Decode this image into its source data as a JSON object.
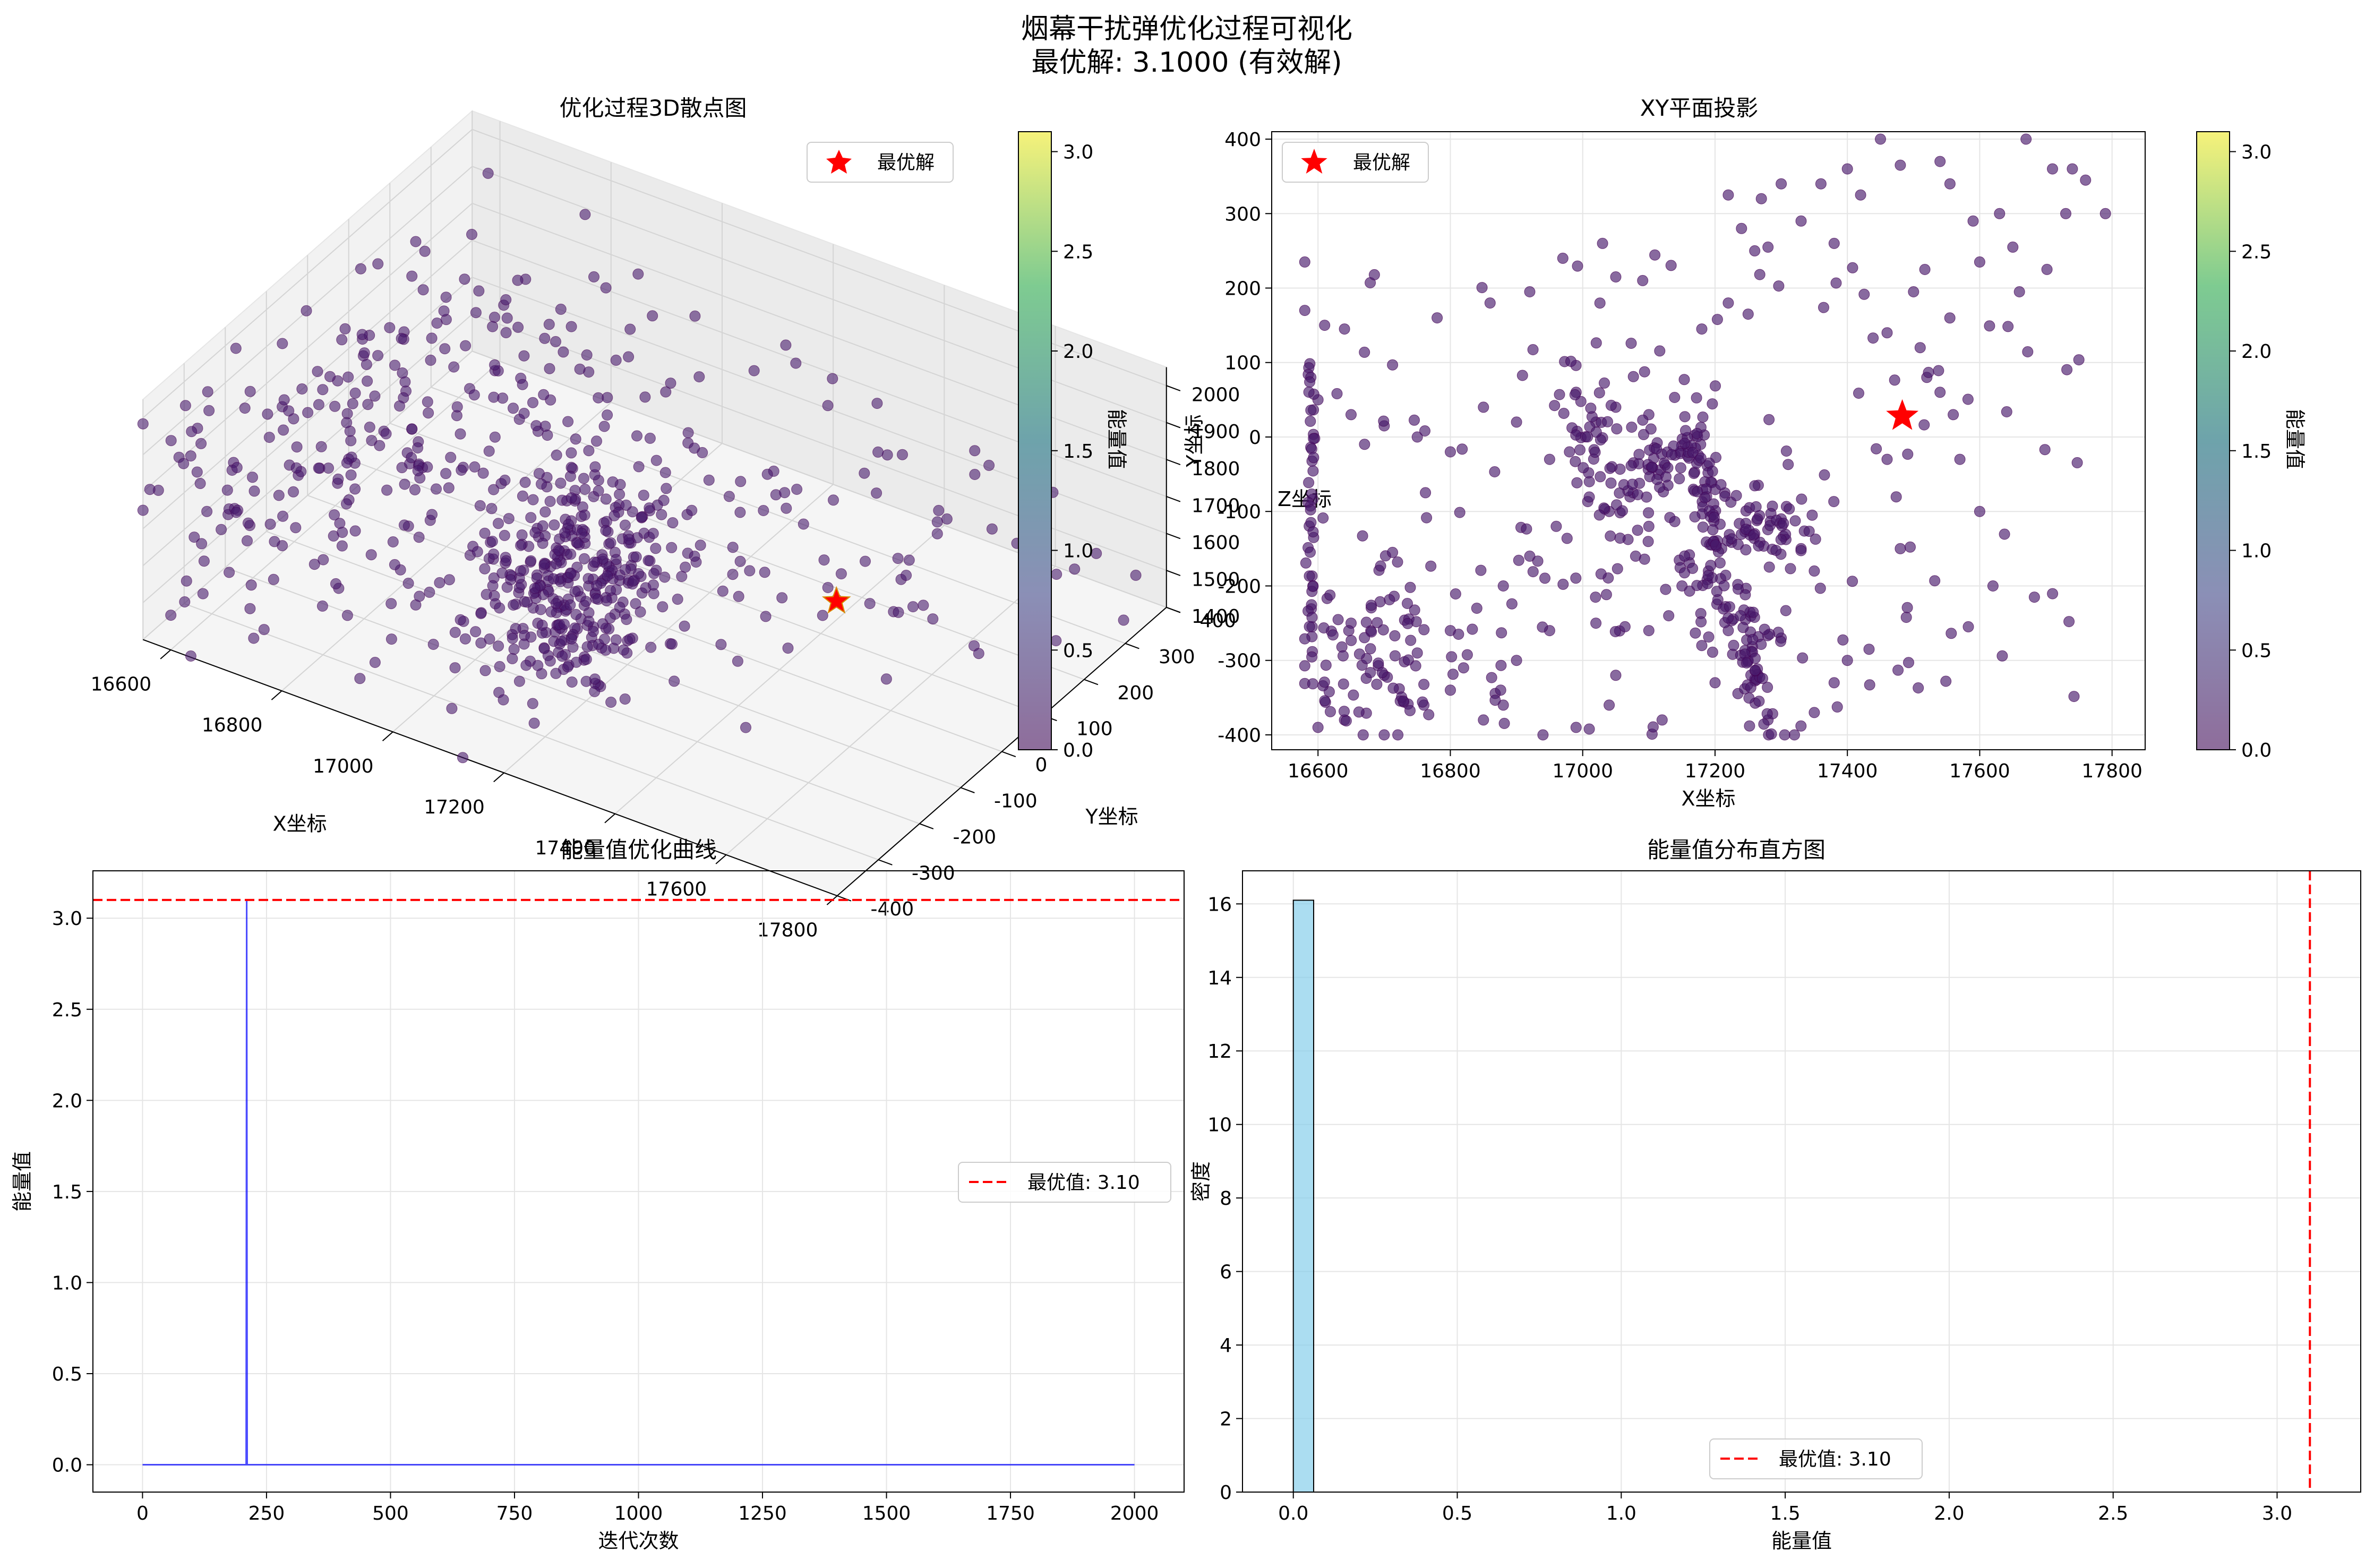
{
  "figure": {
    "suptitle_line1": "烟幕干扰弹优化过程可视化",
    "suptitle_line2": "最优解: 3.1000 (有效解)"
  },
  "colors": {
    "viridis_dark": "#440154",
    "viridis_low": "#481a6c",
    "best_marker": "#ff0000",
    "curve": "#0000ff",
    "hist_bar": "#87ceeb",
    "best_line": "#ff0000"
  },
  "chart_data": [
    {
      "type": "scatter",
      "projection": "3d",
      "title": "优化过程3D散点图",
      "xlabel": "X坐标",
      "ylabel": "Y坐标",
      "zlabel": "Z坐标",
      "x_ticks": [
        "16600",
        "16800",
        "17000",
        "17200",
        "17400",
        "17600",
        "17800"
      ],
      "y_ticks": [
        "-400",
        "-300",
        "-200",
        "-100",
        "0",
        "100",
        "200",
        "300",
        "400"
      ],
      "z_ticks": [
        "1400",
        "1500",
        "1600",
        "1700",
        "1800",
        "1900",
        "2000"
      ],
      "xlim": [
        16550,
        17800
      ],
      "ylim": [
        -400,
        400
      ],
      "zlim": [
        1400,
        2050
      ],
      "legend": "最优解",
      "legend_position": "upper-right",
      "best_point": {
        "x": 17480,
        "y": 30,
        "z": 1600
      },
      "colorbar": {
        "label": "能量值",
        "ticks": [
          "0.0",
          "0.5",
          "1.0",
          "1.5",
          "2.0",
          "2.5",
          "3.0"
        ],
        "range": [
          0,
          3.1
        ]
      }
    },
    {
      "type": "scatter",
      "title": "XY平面投影",
      "xlabel": "X坐标",
      "ylabel": "Y坐标",
      "x_ticks": [
        "16600",
        "16800",
        "17000",
        "17200",
        "17400",
        "17600",
        "17800"
      ],
      "y_ticks": [
        "-400",
        "-300",
        "-200",
        "-100",
        "0",
        "100",
        "200",
        "300",
        "400"
      ],
      "xlim": [
        16530,
        17850
      ],
      "ylim": [
        -420,
        410
      ],
      "grid": true,
      "legend": "最优解",
      "legend_position": "upper-left",
      "best_point": {
        "x": 17483,
        "y": 28
      },
      "sample_points": [
        [
          17450,
          400
        ],
        [
          17480,
          365
        ],
        [
          17540,
          370
        ],
        [
          17555,
          340
        ],
        [
          17670,
          400
        ],
        [
          17710,
          360
        ],
        [
          17740,
          360
        ],
        [
          17760,
          345
        ],
        [
          17790,
          300
        ],
        [
          17730,
          300
        ],
        [
          17400,
          360
        ],
        [
          17420,
          325
        ],
        [
          17360,
          340
        ],
        [
          17300,
          340
        ],
        [
          17270,
          320
        ],
        [
          17220,
          325
        ],
        [
          17240,
          280
        ],
        [
          17280,
          255
        ],
        [
          17260,
          250
        ],
        [
          17330,
          290
        ],
        [
          17380,
          260
        ],
        [
          17590,
          290
        ],
        [
          17630,
          300
        ],
        [
          17650,
          255
        ],
        [
          17600,
          235
        ],
        [
          17660,
          195
        ],
        [
          17050,
          215
        ],
        [
          17030,
          260
        ],
        [
          16970,
          240
        ],
        [
          16920,
          195
        ],
        [
          16860,
          180
        ],
        [
          16780,
          160
        ],
        [
          16580,
          235
        ],
        [
          16580,
          170
        ],
        [
          16610,
          150
        ],
        [
          16640,
          145
        ],
        [
          17180,
          145
        ],
        [
          17250,
          165
        ],
        [
          17220,
          180
        ],
        [
          17500,
          195
        ],
        [
          16600,
          50
        ],
        [
          16650,
          30
        ],
        [
          16700,
          15
        ],
        [
          16750,
          0
        ],
        [
          16800,
          -20
        ],
        [
          16850,
          40
        ],
        [
          16900,
          20
        ],
        [
          16950,
          -30
        ],
        [
          17050,
          40
        ],
        [
          17100,
          30
        ],
        [
          17460,
          140
        ],
        [
          17510,
          120
        ],
        [
          17520,
          80
        ],
        [
          17540,
          60
        ],
        [
          17560,
          30
        ],
        [
          17570,
          -30
        ],
        [
          17600,
          -100
        ],
        [
          17620,
          -200
        ],
        [
          17460,
          -30
        ],
        [
          17480,
          -150
        ],
        [
          16650,
          -250
        ],
        [
          16700,
          -320
        ],
        [
          16750,
          -290
        ],
        [
          16800,
          -340
        ],
        [
          16850,
          -380
        ],
        [
          16900,
          -300
        ],
        [
          16950,
          -260
        ],
        [
          17020,
          -250
        ],
        [
          17050,
          -320
        ],
        [
          17100,
          -260
        ],
        [
          16600,
          -390
        ],
        [
          16640,
          -380
        ],
        [
          16700,
          -400
        ],
        [
          16760,
          -360
        ],
        [
          16820,
          -310
        ],
        [
          16880,
          -360
        ],
        [
          16940,
          -400
        ],
        [
          16990,
          -390
        ],
        [
          17040,
          -360
        ],
        [
          17120,
          -380
        ],
        [
          17280,
          -380
        ],
        [
          17320,
          -400
        ],
        [
          17350,
          -370
        ],
        [
          17380,
          -330
        ],
        [
          17400,
          -300
        ],
        [
          17200,
          -330
        ],
        [
          17250,
          -300
        ],
        [
          17180,
          -280
        ],
        [
          17220,
          -260
        ],
        [
          17300,
          -270
        ],
        [
          17130,
          -240
        ],
        [
          17150,
          -200
        ],
        [
          17190,
          -180
        ],
        [
          17210,
          -150
        ],
        [
          17260,
          -130
        ],
        [
          17300,
          -110
        ],
        [
          17330,
          -150
        ],
        [
          17350,
          -180
        ],
        [
          17100,
          -120
        ],
        [
          17080,
          -160
        ],
        [
          17040,
          -100
        ],
        [
          17010,
          -60
        ],
        [
          16980,
          -20
        ],
        [
          17020,
          20
        ],
        [
          16990,
          60
        ],
        [
          16960,
          -120
        ],
        [
          16920,
          -160
        ],
        [
          16880,
          -200
        ],
        [
          16840,
          -230
        ],
        [
          16800,
          -260
        ]
      ],
      "colorbar": {
        "label": "能量值",
        "ticks": [
          "0.0",
          "0.5",
          "1.0",
          "1.5",
          "2.0",
          "2.5",
          "3.0"
        ],
        "range": [
          0,
          3.1
        ]
      }
    },
    {
      "type": "line",
      "title": "能量值优化曲线",
      "xlabel": "迭代次数",
      "ylabel": "能量值",
      "x_ticks": [
        "0",
        "250",
        "500",
        "750",
        "1000",
        "1250",
        "1500",
        "1750",
        "2000"
      ],
      "y_ticks": [
        "0.0",
        "0.5",
        "1.0",
        "1.5",
        "2.0",
        "2.5",
        "3.0"
      ],
      "xlim": [
        -100,
        2100
      ],
      "ylim": [
        -0.15,
        3.26
      ],
      "grid": true,
      "series": [
        {
          "points": [
            [
              0,
              0
            ],
            [
              209,
              0
            ],
            [
              210,
              3.1
            ],
            [
              211,
              0
            ],
            [
              2000,
              0
            ]
          ]
        }
      ],
      "best_value": 3.1,
      "legend": "最优值: 3.10",
      "legend_position": "center-right"
    },
    {
      "type": "bar",
      "title": "能量值分布直方图",
      "xlabel": "能量值",
      "ylabel": "密度",
      "x_ticks": [
        "0.0",
        "0.5",
        "1.0",
        "1.5",
        "2.0",
        "2.5",
        "3.0"
      ],
      "y_ticks": [
        "0",
        "2",
        "4",
        "6",
        "8",
        "10",
        "12",
        "14",
        "16"
      ],
      "xlim": [
        -0.155,
        3.255
      ],
      "ylim": [
        0,
        16.9
      ],
      "grid": true,
      "bins": [
        {
          "start": 0.0,
          "end": 0.062,
          "density": 16.1
        }
      ],
      "best_value": 3.1,
      "legend": "最优值: 3.10",
      "legend_position": "lower-center"
    }
  ]
}
